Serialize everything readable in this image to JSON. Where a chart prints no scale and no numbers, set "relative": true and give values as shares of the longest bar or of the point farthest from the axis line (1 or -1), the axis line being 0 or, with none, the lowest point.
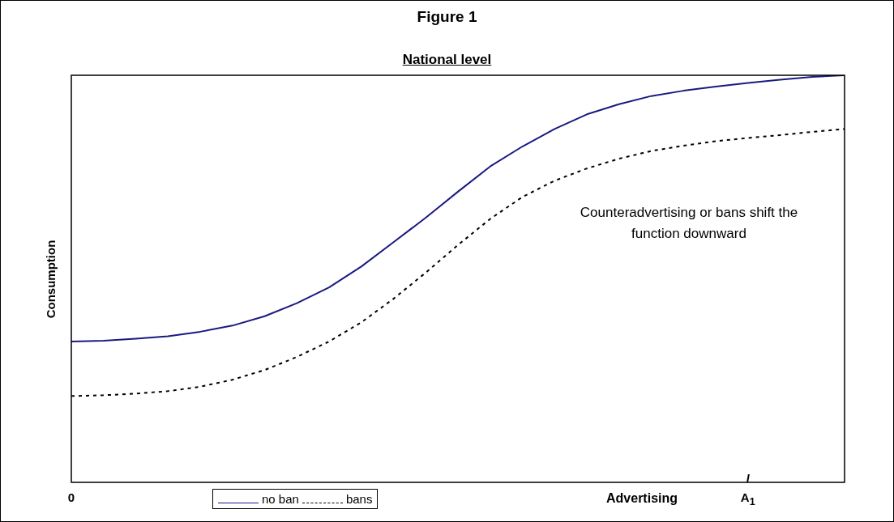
{
  "chart_data": {
    "type": "line",
    "title": "Figure 1",
    "subtitle": "National level",
    "xlabel": "Advertising",
    "ylabel": "Consumption",
    "relative": true,
    "tick_labels": "x",
    "grid": false,
    "legend": "bottom",
    "marker": "none",
    "categories": [
      "0",
      null,
      null,
      null,
      null,
      null,
      null,
      null,
      null,
      null,
      null,
      null,
      null,
      null,
      null,
      null,
      null,
      null,
      null,
      null,
      null,
      "A$_{1}$",
      null,
      null,
      null
    ],
    "series": [
      {
        "name": "no ban",
        "color": "#1a1a80",
        "line_style": "solid",
        "values": [
          0.346,
          0.348,
          0.353,
          0.359,
          0.37,
          0.385,
          0.408,
          0.44,
          0.479,
          0.53,
          0.59,
          0.65,
          0.714,
          0.776,
          0.825,
          0.868,
          0.904,
          0.929,
          0.949,
          0.962,
          0.972,
          0.981,
          0.989,
          0.996,
          1
        ]
      },
      {
        "name": "bans",
        "color": "#000000",
        "line_style": "dashed",
        "values": [
          0.212,
          0.214,
          0.218,
          0.224,
          0.235,
          0.252,
          0.276,
          0.308,
          0.346,
          0.393,
          0.451,
          0.515,
          0.583,
          0.647,
          0.701,
          0.741,
          0.771,
          0.795,
          0.814,
          0.827,
          0.838,
          0.846,
          0.853,
          0.861,
          0.868
        ]
      }
    ],
    "annotations": [
      "Counteradvertising or bans shift the function downward"
    ]
  }
}
